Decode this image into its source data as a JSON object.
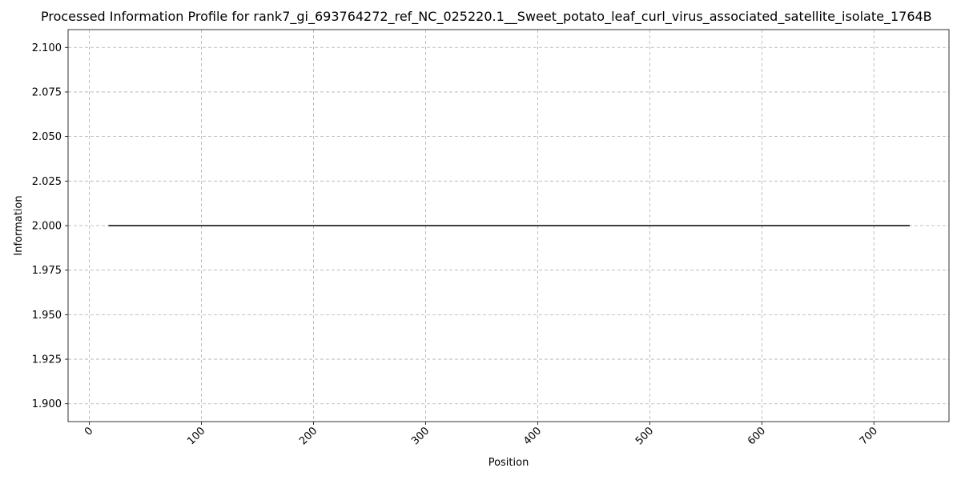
{
  "chart_data": {
    "type": "line",
    "title": "Processed Information Profile for rank7_gi_693764272_ref_NC_025220.1__Sweet_potato_leaf_curl_virus_associated_satellite_isolate_1764B",
    "xlabel": "Position",
    "ylabel": "Information",
    "xlim": [
      -19,
      767
    ],
    "ylim": [
      1.89,
      2.11
    ],
    "xticks": [
      0,
      100,
      200,
      300,
      400,
      500,
      600,
      700
    ],
    "yticks": [
      1.9,
      1.925,
      1.95,
      1.975,
      2.0,
      2.025,
      2.05,
      2.075,
      2.1
    ],
    "ytick_labels": [
      "1.900",
      "1.925",
      "1.950",
      "1.975",
      "2.000",
      "2.025",
      "2.050",
      "2.075",
      "2.100"
    ],
    "grid": true,
    "series": [
      {
        "x": [
          17,
          732
        ],
        "y": [
          2.0,
          2.0
        ],
        "color": "#000000"
      }
    ]
  }
}
